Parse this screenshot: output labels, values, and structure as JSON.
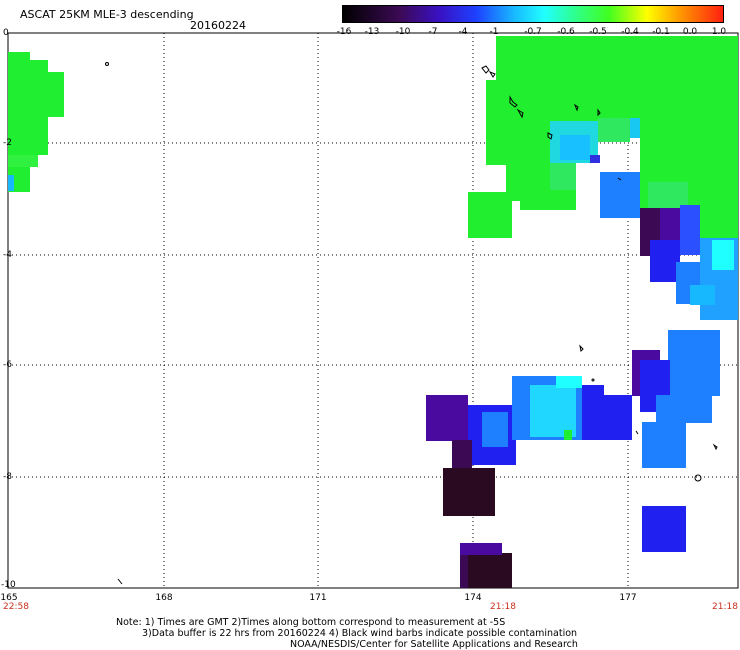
{
  "header": {
    "title": "ASCAT 25KM MLE-3 descending",
    "date": "20160224"
  },
  "colorbar": {
    "ticks": [
      "-16",
      "-13",
      "-10",
      "-7",
      "-4",
      "-1",
      "-0.7",
      "-0.6",
      "-0.5",
      "-0.4",
      "-0.1",
      "0.0",
      "1.0"
    ],
    "colors": [
      "#2a0a20",
      "#3c0a55",
      "#4a0aa0",
      "#2020f0",
      "#1e80ff",
      "#18b8ff",
      "#20ffff",
      "#40ff60",
      "#40ff20",
      "#ffff00",
      "#ffa000",
      "#ff5000",
      "#e02020"
    ]
  },
  "axes": {
    "lat_labels": [
      "0",
      "-2",
      "-4",
      "-6",
      "-8",
      "-10"
    ],
    "lon_labels": [
      "165",
      "168",
      "171",
      "174",
      "177"
    ],
    "time_labels": [
      "22:58",
      "21:18",
      "21:18"
    ]
  },
  "notes": {
    "line1": "Note: 1) Times are GMT 2)Times along bottom correspond to measurement at -5S",
    "line2": "3)Data buffer is 22 hrs from 20160224 4) Black wind barbs indicate possible contamination",
    "line3": "NOAA/NESDIS/Center for Satellite Applications and Research"
  }
}
